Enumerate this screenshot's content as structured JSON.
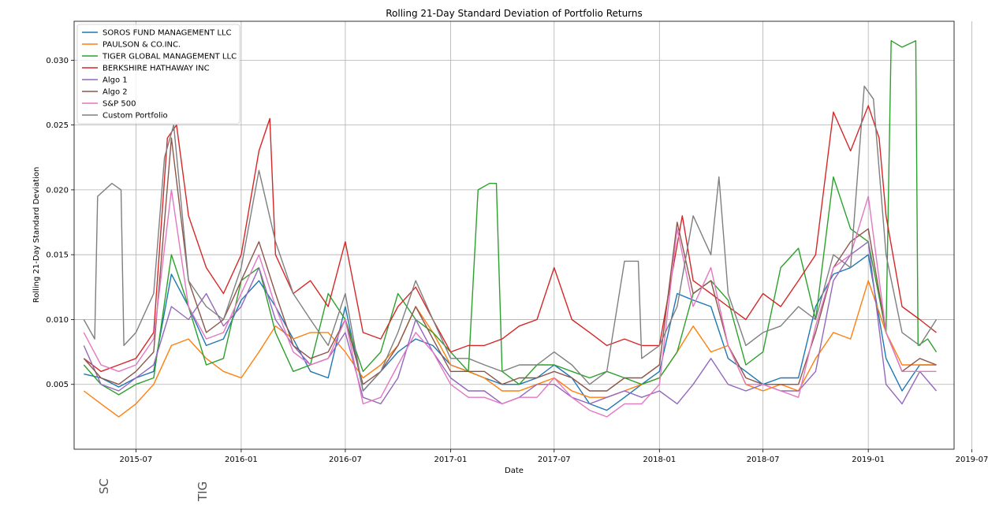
{
  "chart_data": {
    "type": "line",
    "title": "Rolling 21-Day Standard Deviation of Portfolio Returns",
    "xlabel": "Date",
    "ylabel": "Rolling 21-Day Standard Deviation",
    "xlim": [
      "2015-03-15",
      "2019-05-31"
    ],
    "ylim": [
      0.0,
      0.033
    ],
    "x_ticks": [
      "2015-07",
      "2016-01",
      "2016-07",
      "2017-01",
      "2017-07",
      "2018-01",
      "2018-07",
      "2019-01",
      "2019-07"
    ],
    "y_ticks": [
      0.005,
      0.01,
      0.015,
      0.02,
      0.025,
      0.03
    ],
    "y_tick_labels": [
      "0.005",
      "0.010",
      "0.015",
      "0.020",
      "0.025",
      "0.030"
    ],
    "grid": true,
    "legend_position": "top-left",
    "series": [
      {
        "name": "SOROS FUND MANAGEMENT LLC",
        "color": "#1f77b4",
        "x": [
          "2015-04-01",
          "2015-05-01",
          "2015-06-01",
          "2015-07-01",
          "2015-08-01",
          "2015-09-01",
          "2015-10-01",
          "2015-11-01",
          "2015-12-01",
          "2016-01-01",
          "2016-02-01",
          "2016-03-01",
          "2016-04-01",
          "2016-05-01",
          "2016-06-01",
          "2016-07-01",
          "2016-08-01",
          "2016-09-01",
          "2016-10-01",
          "2016-11-01",
          "2016-12-01",
          "2017-01-01",
          "2017-02-01",
          "2017-03-01",
          "2017-04-01",
          "2017-05-01",
          "2017-06-01",
          "2017-07-01",
          "2017-08-01",
          "2017-09-01",
          "2017-10-01",
          "2017-11-01",
          "2017-12-01",
          "2018-01-01",
          "2018-02-01",
          "2018-03-01",
          "2018-04-01",
          "2018-05-01",
          "2018-06-01",
          "2018-07-01",
          "2018-08-01",
          "2018-09-01",
          "2018-10-01",
          "2018-11-01",
          "2018-12-01",
          "2019-01-01",
          "2019-02-01",
          "2019-03-01",
          "2019-04-01",
          "2019-04-30"
        ],
        "values": [
          0.0058,
          0.0055,
          0.0048,
          0.0055,
          0.006,
          0.0135,
          0.011,
          0.008,
          0.0085,
          0.0115,
          0.013,
          0.011,
          0.0085,
          0.006,
          0.0055,
          0.011,
          0.0045,
          0.006,
          0.0075,
          0.0085,
          0.008,
          0.0065,
          0.006,
          0.0055,
          0.005,
          0.005,
          0.0055,
          0.0065,
          0.0055,
          0.0035,
          0.003,
          0.004,
          0.005,
          0.006,
          0.012,
          0.0115,
          0.011,
          0.007,
          0.006,
          0.005,
          0.0055,
          0.0055,
          0.011,
          0.0135,
          0.014,
          0.015,
          0.007,
          0.0045,
          0.0065,
          0.0065
        ]
      },
      {
        "name": "PAULSON & CO.INC.",
        "color": "#ff7f0e",
        "x": [
          "2015-04-01",
          "2015-05-01",
          "2015-06-01",
          "2015-07-01",
          "2015-08-01",
          "2015-09-01",
          "2015-10-01",
          "2015-11-01",
          "2015-12-01",
          "2016-01-01",
          "2016-02-01",
          "2016-03-01",
          "2016-04-01",
          "2016-05-01",
          "2016-06-01",
          "2016-07-01",
          "2016-08-01",
          "2016-09-01",
          "2016-10-01",
          "2016-11-01",
          "2016-12-01",
          "2017-01-01",
          "2017-02-01",
          "2017-03-01",
          "2017-04-01",
          "2017-05-01",
          "2017-06-01",
          "2017-07-01",
          "2017-08-01",
          "2017-09-01",
          "2017-10-01",
          "2017-11-01",
          "2017-12-01",
          "2018-01-01",
          "2018-02-01",
          "2018-03-01",
          "2018-04-01",
          "2018-05-01",
          "2018-06-01",
          "2018-07-01",
          "2018-08-01",
          "2018-09-01",
          "2018-10-01",
          "2018-11-01",
          "2018-12-01",
          "2019-01-01",
          "2019-02-01",
          "2019-03-01",
          "2019-04-01",
          "2019-04-30"
        ],
        "values": [
          0.0045,
          0.0035,
          0.0025,
          0.0035,
          0.005,
          0.008,
          0.0085,
          0.007,
          0.006,
          0.0055,
          0.0075,
          0.0095,
          0.0085,
          0.009,
          0.009,
          0.0075,
          0.0055,
          0.0065,
          0.008,
          0.011,
          0.009,
          0.0065,
          0.006,
          0.0055,
          0.0045,
          0.0045,
          0.005,
          0.0055,
          0.0045,
          0.004,
          0.004,
          0.0045,
          0.005,
          0.0055,
          0.0075,
          0.0095,
          0.0075,
          0.008,
          0.005,
          0.0045,
          0.005,
          0.0045,
          0.007,
          0.009,
          0.0085,
          0.013,
          0.009,
          0.0065,
          0.0065,
          0.0065
        ]
      },
      {
        "name": "TIGER GLOBAL MANAGEMENT LLC",
        "color": "#2ca02c",
        "x": [
          "2015-04-01",
          "2015-05-01",
          "2015-06-01",
          "2015-07-01",
          "2015-08-01",
          "2015-09-01",
          "2015-10-01",
          "2015-11-01",
          "2015-12-01",
          "2016-01-01",
          "2016-02-01",
          "2016-03-01",
          "2016-04-01",
          "2016-05-01",
          "2016-06-01",
          "2016-07-01",
          "2016-08-01",
          "2016-09-01",
          "2016-10-01",
          "2016-11-01",
          "2016-12-01",
          "2017-01-01",
          "2017-02-01",
          "2017-02-18",
          "2017-03-10",
          "2017-03-22",
          "2017-04-01",
          "2017-05-01",
          "2017-06-01",
          "2017-07-01",
          "2017-08-01",
          "2017-09-01",
          "2017-10-01",
          "2017-11-01",
          "2017-12-01",
          "2018-01-01",
          "2018-02-01",
          "2018-03-01",
          "2018-04-01",
          "2018-05-01",
          "2018-06-01",
          "2018-07-01",
          "2018-08-01",
          "2018-09-01",
          "2018-10-01",
          "2018-11-01",
          "2018-12-01",
          "2019-01-01",
          "2019-02-01",
          "2019-02-10",
          "2019-03-01",
          "2019-03-25",
          "2019-03-29",
          "2019-04-15",
          "2019-04-30"
        ],
        "values": [
          0.0065,
          0.005,
          0.0042,
          0.005,
          0.0055,
          0.015,
          0.011,
          0.0065,
          0.007,
          0.013,
          0.014,
          0.009,
          0.006,
          0.0065,
          0.012,
          0.01,
          0.006,
          0.0075,
          0.012,
          0.01,
          0.009,
          0.0075,
          0.006,
          0.02,
          0.0205,
          0.0205,
          0.006,
          0.005,
          0.0065,
          0.0065,
          0.006,
          0.0055,
          0.006,
          0.0055,
          0.005,
          0.0055,
          0.0075,
          0.012,
          0.013,
          0.0115,
          0.0065,
          0.0075,
          0.014,
          0.0155,
          0.01,
          0.021,
          0.017,
          0.016,
          0.009,
          0.0315,
          0.031,
          0.0315,
          0.008,
          0.0085,
          0.0075
        ]
      },
      {
        "name": "BERKSHIRE HATHAWAY INC",
        "color": "#d62728",
        "x": [
          "2015-04-01",
          "2015-05-01",
          "2015-06-01",
          "2015-07-01",
          "2015-08-01",
          "2015-08-25",
          "2015-09-10",
          "2015-10-01",
          "2015-11-01",
          "2015-12-01",
          "2016-01-01",
          "2016-02-01",
          "2016-02-20",
          "2016-03-01",
          "2016-04-01",
          "2016-05-01",
          "2016-06-01",
          "2016-07-01",
          "2016-08-01",
          "2016-09-01",
          "2016-10-01",
          "2016-11-01",
          "2016-12-01",
          "2017-01-01",
          "2017-02-01",
          "2017-03-01",
          "2017-04-01",
          "2017-05-01",
          "2017-06-01",
          "2017-07-01",
          "2017-08-01",
          "2017-09-01",
          "2017-10-01",
          "2017-11-01",
          "2017-12-01",
          "2018-01-01",
          "2018-02-10",
          "2018-03-01",
          "2018-04-01",
          "2018-05-01",
          "2018-06-01",
          "2018-07-01",
          "2018-08-01",
          "2018-09-01",
          "2018-10-01",
          "2018-11-01",
          "2018-12-01",
          "2019-01-01",
          "2019-01-20",
          "2019-02-01",
          "2019-03-01",
          "2019-04-01",
          "2019-04-30"
        ],
        "values": [
          0.007,
          0.006,
          0.0065,
          0.007,
          0.009,
          0.024,
          0.025,
          0.018,
          0.014,
          0.012,
          0.015,
          0.023,
          0.0255,
          0.015,
          0.012,
          0.013,
          0.011,
          0.016,
          0.009,
          0.0085,
          0.011,
          0.0125,
          0.01,
          0.0075,
          0.008,
          0.008,
          0.0085,
          0.0095,
          0.01,
          0.014,
          0.01,
          0.009,
          0.008,
          0.0085,
          0.008,
          0.008,
          0.018,
          0.013,
          0.012,
          0.011,
          0.01,
          0.012,
          0.011,
          0.013,
          0.015,
          0.026,
          0.023,
          0.0265,
          0.024,
          0.018,
          0.011,
          0.01,
          0.009
        ]
      },
      {
        "name": "Algo 1",
        "color": "#9467bd",
        "x": [
          "2015-04-01",
          "2015-05-01",
          "2015-06-01",
          "2015-07-01",
          "2015-08-01",
          "2015-09-01",
          "2015-10-01",
          "2015-11-01",
          "2015-12-01",
          "2016-01-01",
          "2016-02-01",
          "2016-03-01",
          "2016-04-01",
          "2016-05-01",
          "2016-06-01",
          "2016-07-01",
          "2016-08-01",
          "2016-09-01",
          "2016-10-01",
          "2016-11-01",
          "2016-12-01",
          "2017-01-01",
          "2017-02-01",
          "2017-03-01",
          "2017-04-01",
          "2017-05-01",
          "2017-06-01",
          "2017-07-01",
          "2017-08-01",
          "2017-09-01",
          "2017-10-01",
          "2017-11-01",
          "2017-12-01",
          "2018-01-01",
          "2018-02-01",
          "2018-03-01",
          "2018-04-01",
          "2018-05-01",
          "2018-06-01",
          "2018-07-01",
          "2018-08-01",
          "2018-09-01",
          "2018-10-01",
          "2018-11-01",
          "2018-12-01",
          "2019-01-01",
          "2019-02-01",
          "2019-03-01",
          "2019-04-01",
          "2019-04-30"
        ],
        "values": [
          0.008,
          0.005,
          0.0045,
          0.0055,
          0.0065,
          0.011,
          0.01,
          0.012,
          0.0095,
          0.011,
          0.014,
          0.01,
          0.008,
          0.0065,
          0.007,
          0.009,
          0.004,
          0.0035,
          0.0055,
          0.01,
          0.0075,
          0.0055,
          0.0045,
          0.0045,
          0.0035,
          0.004,
          0.005,
          0.005,
          0.004,
          0.0035,
          0.004,
          0.0045,
          0.004,
          0.0045,
          0.0035,
          0.005,
          0.007,
          0.005,
          0.0045,
          0.005,
          0.0045,
          0.0045,
          0.006,
          0.013,
          0.015,
          0.016,
          0.005,
          0.0035,
          0.006,
          0.0045
        ]
      },
      {
        "name": "Algo 2",
        "color": "#8c564b",
        "x": [
          "2015-04-01",
          "2015-05-01",
          "2015-06-01",
          "2015-07-01",
          "2015-08-01",
          "2015-09-01",
          "2015-10-01",
          "2015-11-01",
          "2015-12-01",
          "2016-01-01",
          "2016-02-01",
          "2016-03-01",
          "2016-04-01",
          "2016-05-01",
          "2016-06-01",
          "2016-07-01",
          "2016-08-01",
          "2016-09-01",
          "2016-10-01",
          "2016-11-01",
          "2016-12-01",
          "2017-01-01",
          "2017-02-01",
          "2017-03-01",
          "2017-04-01",
          "2017-05-01",
          "2017-06-01",
          "2017-07-01",
          "2017-08-01",
          "2017-09-01",
          "2017-10-01",
          "2017-11-01",
          "2017-12-01",
          "2018-01-01",
          "2018-02-01",
          "2018-03-01",
          "2018-04-01",
          "2018-05-01",
          "2018-06-01",
          "2018-07-01",
          "2018-08-01",
          "2018-09-01",
          "2018-10-01",
          "2018-11-01",
          "2018-12-01",
          "2019-01-01",
          "2019-02-01",
          "2019-03-01",
          "2019-04-01",
          "2019-04-30"
        ],
        "values": [
          0.007,
          0.0055,
          0.005,
          0.006,
          0.0075,
          0.024,
          0.013,
          0.009,
          0.01,
          0.013,
          0.016,
          0.012,
          0.008,
          0.007,
          0.0075,
          0.01,
          0.005,
          0.006,
          0.008,
          0.011,
          0.0085,
          0.006,
          0.006,
          0.006,
          0.005,
          0.0055,
          0.0055,
          0.006,
          0.0055,
          0.0045,
          0.0045,
          0.0055,
          0.0055,
          0.0065,
          0.0175,
          0.012,
          0.013,
          0.008,
          0.0055,
          0.005,
          0.005,
          0.005,
          0.009,
          0.014,
          0.016,
          0.017,
          0.009,
          0.006,
          0.007,
          0.0065
        ]
      },
      {
        "name": "S&P 500",
        "color": "#e377c2",
        "x": [
          "2015-04-01",
          "2015-05-01",
          "2015-06-01",
          "2015-07-01",
          "2015-08-01",
          "2015-09-01",
          "2015-10-01",
          "2015-11-01",
          "2015-12-01",
          "2016-01-01",
          "2016-02-01",
          "2016-03-01",
          "2016-04-01",
          "2016-05-01",
          "2016-06-01",
          "2016-07-01",
          "2016-08-01",
          "2016-09-01",
          "2016-10-01",
          "2016-11-01",
          "2016-12-01",
          "2017-01-01",
          "2017-02-01",
          "2017-03-01",
          "2017-04-01",
          "2017-05-01",
          "2017-06-01",
          "2017-07-01",
          "2017-08-01",
          "2017-09-01",
          "2017-10-01",
          "2017-11-01",
          "2017-12-01",
          "2018-01-01",
          "2018-02-01",
          "2018-03-01",
          "2018-04-01",
          "2018-05-01",
          "2018-06-01",
          "2018-07-01",
          "2018-08-01",
          "2018-09-01",
          "2018-10-01",
          "2018-11-01",
          "2018-12-01",
          "2019-01-01",
          "2019-02-01",
          "2019-03-01",
          "2019-04-01",
          "2019-04-30"
        ],
        "values": [
          0.009,
          0.0065,
          0.006,
          0.0065,
          0.0085,
          0.02,
          0.011,
          0.0085,
          0.009,
          0.012,
          0.015,
          0.011,
          0.0075,
          0.0065,
          0.007,
          0.01,
          0.0035,
          0.004,
          0.0065,
          0.009,
          0.0075,
          0.005,
          0.004,
          0.004,
          0.0035,
          0.004,
          0.004,
          0.0055,
          0.004,
          0.003,
          0.0025,
          0.0035,
          0.0035,
          0.005,
          0.017,
          0.011,
          0.014,
          0.008,
          0.005,
          0.005,
          0.0045,
          0.004,
          0.0095,
          0.014,
          0.015,
          0.0195,
          0.009,
          0.006,
          0.006,
          0.006
        ]
      },
      {
        "name": "Custom Portfolio",
        "color": "#7f7f7f",
        "x": [
          "2015-04-01",
          "2015-04-20",
          "2015-04-25",
          "2015-05-20",
          "2015-06-05",
          "2015-06-10",
          "2015-07-01",
          "2015-08-01",
          "2015-08-20",
          "2015-09-05",
          "2015-10-01",
          "2015-11-01",
          "2015-12-01",
          "2016-01-01",
          "2016-02-01",
          "2016-03-01",
          "2016-04-01",
          "2016-05-01",
          "2016-06-01",
          "2016-07-01",
          "2016-08-01",
          "2016-09-01",
          "2016-10-01",
          "2016-11-01",
          "2016-12-01",
          "2017-01-01",
          "2017-02-01",
          "2017-03-01",
          "2017-04-01",
          "2017-05-01",
          "2017-06-01",
          "2017-07-01",
          "2017-08-01",
          "2017-09-01",
          "2017-10-01",
          "2017-11-01",
          "2017-11-25",
          "2017-12-01",
          "2018-01-01",
          "2018-02-01",
          "2018-03-01",
          "2018-04-01",
          "2018-04-15",
          "2018-05-01",
          "2018-06-01",
          "2018-07-01",
          "2018-08-01",
          "2018-09-01",
          "2018-10-01",
          "2018-11-01",
          "2018-12-01",
          "2018-12-25",
          "2019-01-10",
          "2019-02-01",
          "2019-03-01",
          "2019-04-01",
          "2019-04-30"
        ],
        "values": [
          0.01,
          0.0085,
          0.0195,
          0.0205,
          0.02,
          0.008,
          0.009,
          0.012,
          0.0225,
          0.025,
          0.013,
          0.011,
          0.01,
          0.014,
          0.0215,
          0.016,
          0.012,
          0.01,
          0.008,
          0.012,
          0.0045,
          0.006,
          0.009,
          0.013,
          0.01,
          0.007,
          0.007,
          0.0065,
          0.006,
          0.0065,
          0.0065,
          0.0075,
          0.0065,
          0.005,
          0.006,
          0.0145,
          0.0145,
          0.007,
          0.008,
          0.011,
          0.018,
          0.015,
          0.021,
          0.012,
          0.008,
          0.009,
          0.0095,
          0.011,
          0.01,
          0.015,
          0.014,
          0.028,
          0.027,
          0.015,
          0.009,
          0.008,
          0.01
        ]
      }
    ]
  },
  "page": {
    "rotated_fragments": [
      "SC",
      "TIG"
    ]
  }
}
